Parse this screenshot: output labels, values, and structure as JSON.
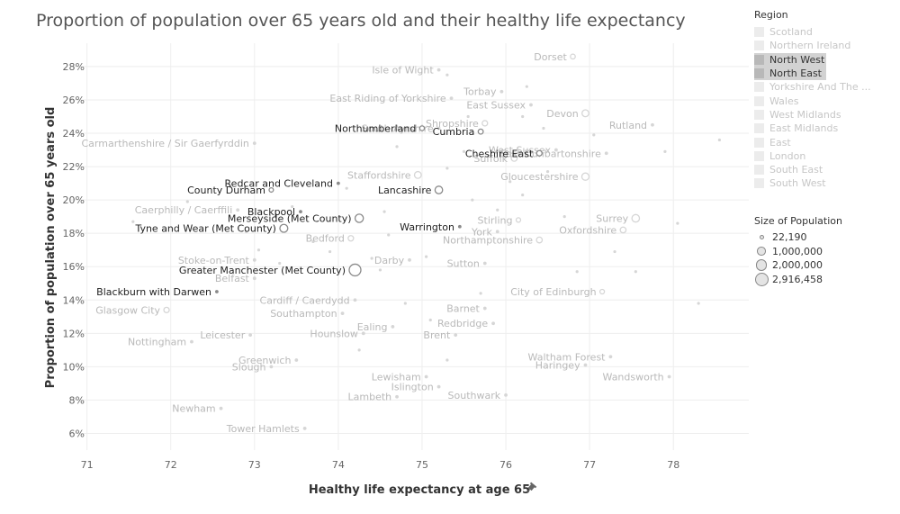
{
  "chart_data": {
    "type": "scatter",
    "title": "Proportion of population over 65 years old and their healthy life expectancy",
    "xlabel": "Healthy life expectancy at age 65",
    "xlabel_icon": "pin-icon",
    "ylabel": "Proportion of population over 65 years old",
    "xlim": [
      70.8,
      78.9
    ],
    "ylim": [
      5.0,
      29.4
    ],
    "x_ticks": [
      71,
      72,
      73,
      74,
      75,
      76,
      77,
      78
    ],
    "y_ticks": [
      6,
      8,
      10,
      12,
      14,
      16,
      18,
      20,
      22,
      24,
      26,
      28
    ],
    "y_tick_suffix": "%",
    "grid": true,
    "colors": {
      "highlight_point": "#8a8a8a",
      "highlight_label": "#222222",
      "faded_point": "#d6d6d6",
      "faded_label": "#b9b9b9",
      "axis_text": "#666666",
      "grid": "#eeeeee"
    },
    "points": [
      {
        "name": "Dorset",
        "x": 76.8,
        "y": 28.6,
        "hl": false
      },
      {
        "name": "Isle of Wight",
        "x": 75.2,
        "y": 27.8,
        "hl": false
      },
      {
        "name": "Torbay",
        "x": 75.95,
        "y": 26.5,
        "hl": false
      },
      {
        "name": "East Riding of Yorkshire",
        "x": 75.35,
        "y": 26.1,
        "hl": false
      },
      {
        "name": "East Sussex",
        "x": 76.3,
        "y": 25.7,
        "hl": false
      },
      {
        "name": "Devon",
        "x": 76.95,
        "y": 25.2,
        "hl": false
      },
      {
        "name": "South Ayrshire",
        "x": 75.2,
        "y": 24.3,
        "hl": false
      },
      {
        "name": "Shropshire",
        "x": 75.75,
        "y": 24.6,
        "hl": false
      },
      {
        "name": "Rutland",
        "x": 77.75,
        "y": 24.5,
        "hl": false
      },
      {
        "name": "Northumberland",
        "x": 75.0,
        "y": 24.3,
        "hl": true
      },
      {
        "name": "Cumbria",
        "x": 75.7,
        "y": 24.1,
        "hl": true
      },
      {
        "name": "West Sussex",
        "x": 76.6,
        "y": 23.0,
        "hl": false
      },
      {
        "name": "Carmarthenshire / Sir Gaerfyrddin",
        "x": 73.0,
        "y": 23.4,
        "hl": false
      },
      {
        "name": "Suffolk",
        "x": 76.1,
        "y": 22.5,
        "hl": false
      },
      {
        "name": "East Dunbartonshire",
        "x": 77.2,
        "y": 22.8,
        "hl": false
      },
      {
        "name": "Cheshire East",
        "x": 76.4,
        "y": 22.8,
        "hl": true
      },
      {
        "name": "Redcar and Cleveland",
        "x": 74.0,
        "y": 21.0,
        "hl": true
      },
      {
        "name": "Staffordshire",
        "x": 74.95,
        "y": 21.5,
        "hl": false
      },
      {
        "name": "Gloucestershire",
        "x": 76.95,
        "y": 21.4,
        "hl": false
      },
      {
        "name": "County Durham",
        "x": 73.2,
        "y": 20.6,
        "hl": true
      },
      {
        "name": "Lancashire",
        "x": 75.2,
        "y": 20.6,
        "hl": true
      },
      {
        "name": "Blackpool",
        "x": 73.55,
        "y": 19.3,
        "hl": true
      },
      {
        "name": "Caerphilly / Caerffili",
        "x": 72.8,
        "y": 19.4,
        "hl": false
      },
      {
        "name": "Surrey",
        "x": 77.55,
        "y": 18.9,
        "hl": false
      },
      {
        "name": "Merseyside (Met County)",
        "x": 74.25,
        "y": 18.9,
        "hl": true
      },
      {
        "name": "Stirling",
        "x": 76.15,
        "y": 18.8,
        "hl": false
      },
      {
        "name": "Oxfordshire",
        "x": 77.4,
        "y": 18.2,
        "hl": false
      },
      {
        "name": "Tyne and Wear (Met County)",
        "x": 73.35,
        "y": 18.3,
        "hl": true
      },
      {
        "name": "Bedford",
        "x": 74.15,
        "y": 17.7,
        "hl": false
      },
      {
        "name": "Warrington",
        "x": 75.45,
        "y": 18.4,
        "hl": true
      },
      {
        "name": "York",
        "x": 75.9,
        "y": 18.1,
        "hl": false
      },
      {
        "name": "Northamptonshire",
        "x": 76.4,
        "y": 17.6,
        "hl": false
      },
      {
        "name": "Stoke-on-Trent",
        "x": 73.0,
        "y": 16.4,
        "hl": false
      },
      {
        "name": "Darby",
        "x": 74.85,
        "y": 16.4,
        "hl": false
      },
      {
        "name": "Sutton",
        "x": 75.75,
        "y": 16.2,
        "hl": false
      },
      {
        "name": "Belfast",
        "x": 73.0,
        "y": 15.3,
        "hl": false
      },
      {
        "name": "Greater Manchester (Met County)",
        "x": 74.2,
        "y": 15.8,
        "hl": true
      },
      {
        "name": "City of Edinburgh",
        "x": 77.15,
        "y": 14.5,
        "hl": false
      },
      {
        "name": "Blackburn with Darwen",
        "x": 72.55,
        "y": 14.5,
        "hl": true
      },
      {
        "name": "Cardiff / Caerdydd",
        "x": 74.2,
        "y": 14.0,
        "hl": false
      },
      {
        "name": "Barnet",
        "x": 75.75,
        "y": 13.5,
        "hl": false
      },
      {
        "name": "Glasgow City",
        "x": 71.95,
        "y": 13.4,
        "hl": false
      },
      {
        "name": "Southampton",
        "x": 74.05,
        "y": 13.2,
        "hl": false
      },
      {
        "name": "Redbridge",
        "x": 75.85,
        "y": 12.6,
        "hl": false
      },
      {
        "name": "Ealing",
        "x": 74.65,
        "y": 12.4,
        "hl": false
      },
      {
        "name": "Nottingham",
        "x": 72.25,
        "y": 11.5,
        "hl": false
      },
      {
        "name": "Leicester",
        "x": 72.95,
        "y": 11.9,
        "hl": false
      },
      {
        "name": "Hounslow",
        "x": 74.3,
        "y": 12.0,
        "hl": false
      },
      {
        "name": "Brent",
        "x": 75.4,
        "y": 11.9,
        "hl": false
      },
      {
        "name": "Waltham Forest",
        "x": 77.25,
        "y": 10.6,
        "hl": false
      },
      {
        "name": "Greenwich",
        "x": 73.5,
        "y": 10.4,
        "hl": false
      },
      {
        "name": "Slough",
        "x": 73.2,
        "y": 10.0,
        "hl": false
      },
      {
        "name": "Haringey",
        "x": 76.95,
        "y": 10.1,
        "hl": false
      },
      {
        "name": "Lewisham",
        "x": 75.05,
        "y": 9.4,
        "hl": false
      },
      {
        "name": "Wandsworth",
        "x": 77.95,
        "y": 9.4,
        "hl": false
      },
      {
        "name": "Islington",
        "x": 75.2,
        "y": 8.8,
        "hl": false
      },
      {
        "name": "Lambeth",
        "x": 74.7,
        "y": 8.2,
        "hl": false
      },
      {
        "name": "Southwark",
        "x": 76.0,
        "y": 8.3,
        "hl": false
      },
      {
        "name": "Newham",
        "x": 72.6,
        "y": 7.5,
        "hl": false
      },
      {
        "name": "Tower Hamlets",
        "x": 73.6,
        "y": 6.3,
        "hl": false
      }
    ],
    "extra_points": [
      {
        "x": 71.55,
        "y": 18.7
      },
      {
        "x": 72.2,
        "y": 19.9
      },
      {
        "x": 72.9,
        "y": 18.1
      },
      {
        "x": 73.05,
        "y": 17.0
      },
      {
        "x": 73.3,
        "y": 16.2
      },
      {
        "x": 73.7,
        "y": 17.5
      },
      {
        "x": 73.9,
        "y": 16.9
      },
      {
        "x": 74.1,
        "y": 20.7
      },
      {
        "x": 74.4,
        "y": 16.5
      },
      {
        "x": 74.5,
        "y": 15.8
      },
      {
        "x": 74.6,
        "y": 17.9
      },
      {
        "x": 74.8,
        "y": 13.8
      },
      {
        "x": 75.1,
        "y": 12.8
      },
      {
        "x": 75.3,
        "y": 21.9
      },
      {
        "x": 75.5,
        "y": 22.9
      },
      {
        "x": 75.6,
        "y": 20.0
      },
      {
        "x": 75.9,
        "y": 19.4
      },
      {
        "x": 76.05,
        "y": 21.1
      },
      {
        "x": 76.2,
        "y": 20.3
      },
      {
        "x": 76.5,
        "y": 21.7
      },
      {
        "x": 76.7,
        "y": 19.0
      },
      {
        "x": 76.85,
        "y": 15.7
      },
      {
        "x": 77.05,
        "y": 23.9
      },
      {
        "x": 77.3,
        "y": 16.9
      },
      {
        "x": 77.55,
        "y": 15.7
      },
      {
        "x": 77.9,
        "y": 22.9
      },
      {
        "x": 78.05,
        "y": 18.6
      },
      {
        "x": 78.3,
        "y": 13.8
      },
      {
        "x": 78.55,
        "y": 23.6
      },
      {
        "x": 75.55,
        "y": 25.0
      },
      {
        "x": 76.2,
        "y": 25.0
      },
      {
        "x": 76.45,
        "y": 24.3
      },
      {
        "x": 76.25,
        "y": 26.8
      },
      {
        "x": 75.3,
        "y": 27.5
      },
      {
        "x": 74.7,
        "y": 23.2
      },
      {
        "x": 73.45,
        "y": 19.6
      },
      {
        "x": 74.55,
        "y": 19.3
      },
      {
        "x": 75.05,
        "y": 16.6
      },
      {
        "x": 75.7,
        "y": 14.4
      },
      {
        "x": 74.25,
        "y": 11.0
      },
      {
        "x": 75.3,
        "y": 10.4
      }
    ]
  },
  "legend": {
    "region_title": "Region",
    "regions": [
      {
        "label": "Scotland",
        "active": false
      },
      {
        "label": "Northern Ireland",
        "active": false
      },
      {
        "label": "North West",
        "active": true
      },
      {
        "label": "North East",
        "active": true
      },
      {
        "label": "Yorkshire And The ...",
        "active": false
      },
      {
        "label": "Wales",
        "active": false
      },
      {
        "label": "West Midlands",
        "active": false
      },
      {
        "label": "East Midlands",
        "active": false
      },
      {
        "label": "East",
        "active": false
      },
      {
        "label": "London",
        "active": false
      },
      {
        "label": "South East",
        "active": false
      },
      {
        "label": "South West",
        "active": false
      }
    ],
    "size_title": "Size of Population",
    "sizes": [
      {
        "label": "22,190",
        "population": 22190
      },
      {
        "label": "1,000,000",
        "population": 1000000
      },
      {
        "label": "2,000,000",
        "population": 2000000
      },
      {
        "label": "2,916,458",
        "population": 2916458
      }
    ]
  }
}
